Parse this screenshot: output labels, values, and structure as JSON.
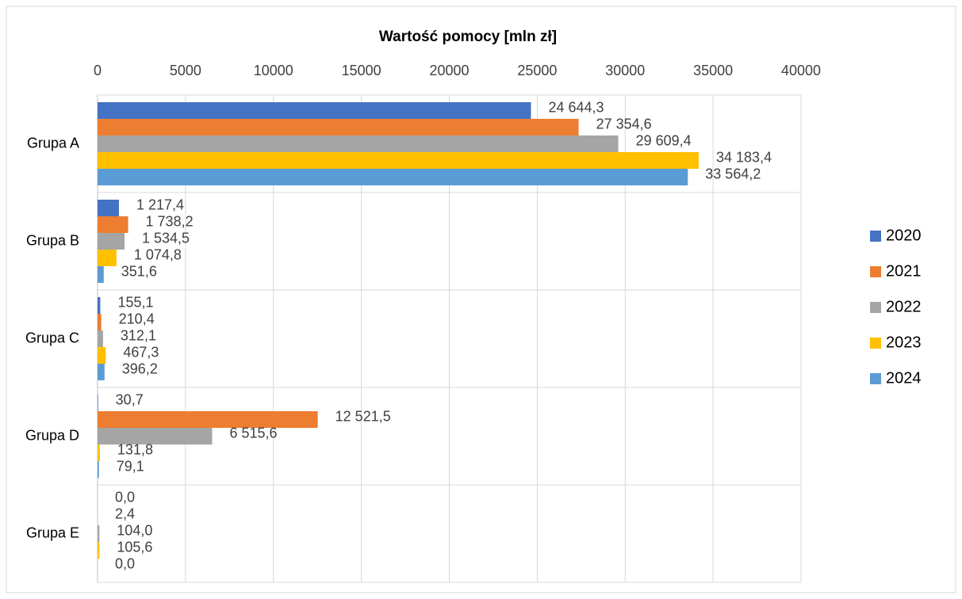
{
  "chart_data": {
    "type": "bar",
    "orientation": "horizontal",
    "title": "Wartość pomocy [mln zł]",
    "categories": [
      "Grupa A",
      "Grupa B",
      "Grupa C",
      "Grupa D",
      "Grupa E"
    ],
    "series": [
      {
        "name": "2020",
        "color": "#4472c4",
        "values": [
          24644.3,
          1217.4,
          155.1,
          30.7,
          0.0
        ],
        "value_labels": [
          "24 644,3",
          "1 217,4",
          "155,1",
          "30,7",
          "0,0"
        ]
      },
      {
        "name": "2021",
        "color": "#ed7d31",
        "values": [
          27354.6,
          1738.2,
          210.4,
          12521.5,
          2.4
        ],
        "value_labels": [
          "27 354,6",
          "1 738,2",
          "210,4",
          "12 521,5",
          "2,4"
        ]
      },
      {
        "name": "2022",
        "color": "#a5a5a5",
        "values": [
          29609.4,
          1534.5,
          312.1,
          6515.6,
          104.0
        ],
        "value_labels": [
          "29 609,4",
          "1 534,5",
          "312,1",
          "6 515,6",
          "104,0"
        ]
      },
      {
        "name": "2023",
        "color": "#ffc000",
        "values": [
          34183.4,
          1074.8,
          467.3,
          131.8,
          105.6
        ],
        "value_labels": [
          "34 183,4",
          "1 074,8",
          "467,3",
          "131,8",
          "105,6"
        ]
      },
      {
        "name": "2024",
        "color": "#5b9bd5",
        "values": [
          33564.2,
          351.6,
          396.2,
          79.1,
          0.0
        ],
        "value_labels": [
          "33 564,2",
          "351,6",
          "396,2",
          "79,1",
          "0,0"
        ]
      }
    ],
    "xlim": [
      0,
      40000
    ],
    "xticks": [
      0,
      5000,
      10000,
      15000,
      20000,
      25000,
      30000,
      35000,
      40000
    ],
    "grid": true,
    "legend": "right"
  }
}
